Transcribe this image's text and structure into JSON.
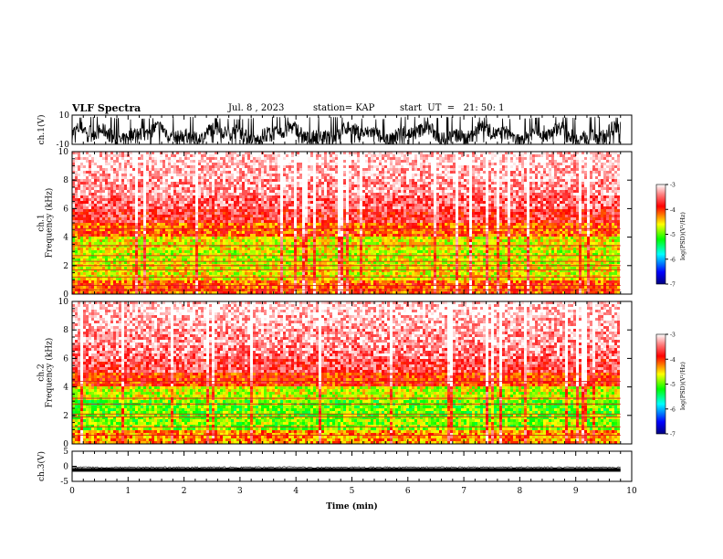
{
  "header": {
    "title": "VLF Spectra",
    "date": "Jul. 8 , 2023",
    "station": "station= KAP",
    "start_ut": "start  UT  =   21: 50: 1"
  },
  "chart_data": [
    {
      "type": "line",
      "panel": "ch1-waveform",
      "ylabel": "ch.1(V)",
      "ylim": [
        -10,
        10
      ],
      "yticks": [
        "10",
        "-10"
      ],
      "xlim": [
        0,
        10
      ],
      "x": [
        0.0,
        0.5,
        1.0,
        1.5,
        2.0,
        2.5,
        3.0,
        3.5,
        4.0,
        4.5,
        5.0,
        5.5,
        6.0,
        6.5,
        7.0,
        7.5,
        8.0,
        8.5,
        9.0,
        9.5,
        9.8
      ],
      "envelope_max": [
        8,
        9,
        7,
        8,
        9,
        8,
        7,
        9,
        8,
        9,
        8,
        7,
        9,
        8,
        9,
        8,
        7,
        9,
        8,
        9,
        8
      ],
      "envelope_min": [
        -9,
        -8,
        -9,
        -10,
        -8,
        -9,
        -10,
        -8,
        -9,
        -10,
        -9,
        -8,
        -10,
        -9,
        -8,
        -9,
        -10,
        -8,
        -9,
        -10,
        -9
      ]
    },
    {
      "type": "heatmap",
      "panel": "ch1-spectrogram",
      "ylabel": "ch.1\nFrequency  (kHz)",
      "ylim": [
        0,
        10
      ],
      "yticks": [
        "0",
        "2",
        "4",
        "6",
        "8",
        "10"
      ],
      "xlim": [
        0,
        10
      ],
      "data_end_min": 9.8,
      "colorbar": {
        "label": "log(PSD)(V²/Hz)",
        "range": [
          -7,
          -3
        ],
        "ticks": [
          "-3",
          "-4",
          "-5",
          "-6",
          "-7"
        ]
      },
      "freq_khz": [
        0.5,
        1.5,
        2.5,
        3.5,
        4.5,
        5.5,
        6.5,
        7.5,
        8.5,
        9.5
      ],
      "median_log_psd": [
        -4.1,
        -4.6,
        -4.7,
        -4.6,
        -4.1,
        -3.7,
        -3.5,
        -3.3,
        -3.2,
        -3.1
      ],
      "tone_lines_khz": [
        0.3,
        0.6,
        1.2,
        1.7,
        2.0,
        2.3,
        2.7,
        3.4,
        4.6
      ]
    },
    {
      "type": "heatmap",
      "panel": "ch2-spectrogram",
      "ylabel": "ch.2\nFrequency  (kHz)",
      "ylim": [
        0,
        10
      ],
      "yticks": [
        "0",
        "2",
        "4",
        "6",
        "8",
        "10"
      ],
      "xlim": [
        0,
        10
      ],
      "data_end_min": 9.8,
      "colorbar": {
        "label": "log(PSD)(V²/Hz)",
        "range": [
          -7,
          -3
        ],
        "ticks": [
          "-3",
          "-4",
          "-5",
          "-6",
          "-7"
        ]
      },
      "freq_khz": [
        0.5,
        1.5,
        2.5,
        3.5,
        4.5,
        5.5,
        6.5,
        7.5,
        8.5,
        9.5
      ],
      "median_log_psd": [
        -4.3,
        -4.9,
        -5.0,
        -4.7,
        -4.0,
        -3.6,
        -3.4,
        -3.3,
        -3.2,
        -3.1
      ],
      "tone_lines_khz": [
        0.6,
        1.2,
        1.9,
        2.1,
        2.8,
        3.2,
        4.4
      ]
    },
    {
      "type": "line",
      "panel": "ch3-waveform",
      "ylabel": "ch.3(V)",
      "ylim": [
        -5,
        5
      ],
      "yticks": [
        "5",
        "0",
        "-5"
      ],
      "xlim": [
        0,
        10
      ],
      "xlabel": "Time  (min)",
      "xticks": [
        "0",
        "1",
        "2",
        "3",
        "4",
        "5",
        "6",
        "7",
        "8",
        "9",
        "10"
      ],
      "data_end_min": 9.8,
      "band_min": -1.8,
      "band_max": -0.6
    }
  ]
}
